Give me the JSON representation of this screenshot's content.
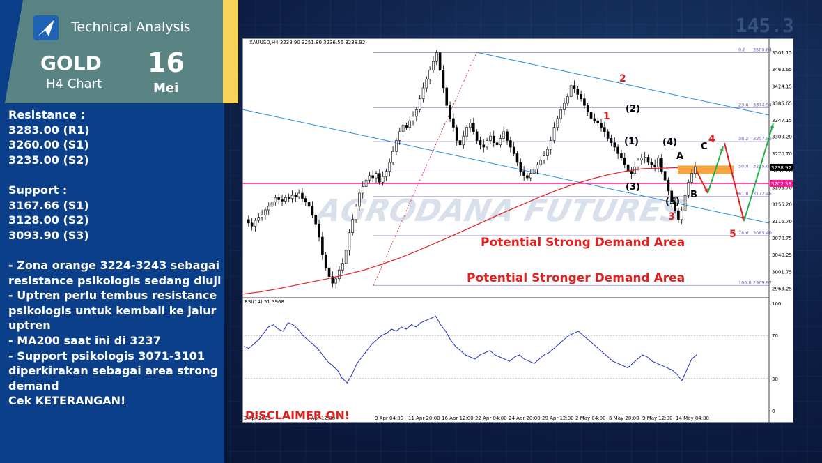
{
  "header": {
    "title": "Technical Analysis",
    "asset": "GOLD",
    "timeframe": "H4 Chart",
    "day": "16",
    "month": "Mei"
  },
  "notes": [
    "Resistance :",
    "3283.00 (R1)",
    "3260.00 (S1)",
    "3235.00 (S2)",
    "",
    "Support :",
    "3167.66 (S1)",
    "3128.00 (S2)",
    "3093.90 (S3)",
    "",
    "- Zona orange 3224-3243 sebagai resistance psikologis sedang diuji",
    "- Uptren perlu tembus resistance psikologis untuk kembali ke jalur uptren",
    "- MA200 saat ini di 3237",
    "- Support psikologis 3071-3101 diperkirakan sebagai area strong demand",
    "Cek KETERANGAN!"
  ],
  "disclaimer": "DISCLAIMER ON!",
  "bg_ticker": "145.3",
  "chart_data": {
    "type": "candlestick",
    "symbol_line": "XAUUSD,H4  3238.90 3251.80 3236.56 3238.92",
    "watermark": "AGRODANA FUTURES",
    "ylim": [
      2945,
      3520
    ],
    "y_ticks": [
      "3501.15",
      "3462.65",
      "3424.15",
      "3385.65",
      "3347.15",
      "3309.20",
      "3270.70",
      "3232.20",
      "3193.70",
      "3155.20",
      "3116.70",
      "3078.75",
      "3040.25",
      "3001.75",
      "2963.25"
    ],
    "x_ticks": [
      "9 Apr 04:00",
      "11 Apr 20:00",
      "16 Apr 12:00",
      "22 Apr 04:00",
      "24 Apr 20:00",
      "29 Apr 12:00",
      "2 May 04:00",
      "6 May 20:00",
      "9 May 12:00",
      "14 May 04:00"
    ],
    "x_tick_first": "2 Apr 2025",
    "x_tick_second": "3 Apr 12:00",
    "current_price": "3238.92",
    "line_price": "3202.39",
    "fib_levels": [
      {
        "label": "0.0",
        "value": "3500.04",
        "price": 3500.04
      },
      {
        "label": "23.6",
        "value": "3374.94",
        "price": 3374.94
      },
      {
        "label": "38.2",
        "value": "3297.59",
        "price": 3297.59
      },
      {
        "label": "50.0",
        "value": "3235.01",
        "price": 3235.01
      },
      {
        "label": "61.8",
        "value": "3172.46",
        "price": 3172.46
      },
      {
        "label": "78.6",
        "value": "3083.40",
        "price": 3083.4
      },
      {
        "label": "100.0",
        "value": "2969.97",
        "price": 2969.97
      }
    ],
    "close_series": [
      3120,
      3112,
      3105,
      3118,
      3125,
      3130,
      3142,
      3150,
      3160,
      3170,
      3165,
      3162,
      3170,
      3168,
      3175,
      3172,
      3180,
      3168,
      3160,
      3150,
      3130,
      3110,
      3080,
      3040,
      3010,
      2990,
      2975,
      2985,
      3005,
      3020,
      3050,
      3090,
      3120,
      3150,
      3180,
      3195,
      3210,
      3220,
      3215,
      3225,
      3205,
      3218,
      3230,
      3250,
      3275,
      3300,
      3320,
      3335,
      3330,
      3345,
      3355,
      3370,
      3395,
      3420,
      3440,
      3460,
      3480,
      3500,
      3460,
      3420,
      3380,
      3350,
      3330,
      3300,
      3290,
      3310,
      3330,
      3340,
      3320,
      3300,
      3290,
      3285,
      3300,
      3310,
      3295,
      3290,
      3305,
      3320,
      3300,
      3285,
      3270,
      3250,
      3230,
      3220,
      3215,
      3225,
      3235,
      3245,
      3255,
      3265,
      3280,
      3300,
      3330,
      3350,
      3370,
      3385,
      3400,
      3425,
      3418,
      3405,
      3395,
      3380,
      3365,
      3350,
      3345,
      3340,
      3330,
      3320,
      3305,
      3295,
      3285,
      3270,
      3260,
      3245,
      3230,
      3225,
      3240,
      3255,
      3260,
      3262,
      3250,
      3245,
      3240,
      3260,
      3230,
      3210,
      3185,
      3160,
      3140,
      3120,
      3140,
      3175,
      3205,
      3225,
      3240
    ],
    "ma_label": "MA200",
    "ma200": [
      2950,
      2955,
      2962,
      2970,
      2978,
      2986,
      2995,
      3005,
      3018,
      3032,
      3048,
      3065,
      3082,
      3100,
      3118,
      3136,
      3153,
      3170,
      3186,
      3200,
      3212,
      3222,
      3230,
      3236,
      3237,
      3238
    ],
    "rsi_label": "RSI(14) 51.3968",
    "rsi_ticks": [
      "100",
      "70",
      "30",
      "0"
    ],
    "rsi_series": [
      60,
      58,
      62,
      66,
      72,
      78,
      80,
      76,
      74,
      82,
      80,
      76,
      70,
      66,
      62,
      58,
      52,
      46,
      42,
      38,
      30,
      26,
      34,
      44,
      50,
      56,
      62,
      66,
      70,
      72,
      76,
      74,
      78,
      76,
      80,
      78,
      82,
      84,
      86,
      88,
      80,
      74,
      66,
      60,
      56,
      52,
      50,
      48,
      52,
      54,
      56,
      52,
      50,
      48,
      46,
      50,
      52,
      48,
      46,
      44,
      48,
      52,
      54,
      58,
      62,
      66,
      70,
      72,
      74,
      70,
      66,
      62,
      58,
      54,
      50,
      46,
      44,
      42,
      40,
      44,
      48,
      52,
      50,
      46,
      44,
      42,
      40,
      38,
      34,
      28,
      38,
      48,
      52
    ],
    "wave_labels_black": [
      "(1)",
      "(2)",
      "(3)",
      "(4)",
      "(5)",
      "A",
      "B",
      "C"
    ],
    "wave_labels_red": [
      "1",
      "2",
      "3",
      "4",
      "5"
    ],
    "zone_orange": [
      3224,
      3243
    ],
    "demand_labels": [
      "Potential Strong Demand Area",
      "Potential Stronger Demand Area"
    ]
  },
  "colors": {
    "panel": "#0c3f8a",
    "panel_head": "#5a8383",
    "accent_yellow": "#f7d35a",
    "demand_text": "#e0211f",
    "ma_line": "#e02020",
    "channel": "#2a8be0",
    "pink_line": "#ff1493",
    "orange_zone": "#f7941d",
    "green_arrow": "#22b24c",
    "red_arrow": "#e0211f"
  }
}
